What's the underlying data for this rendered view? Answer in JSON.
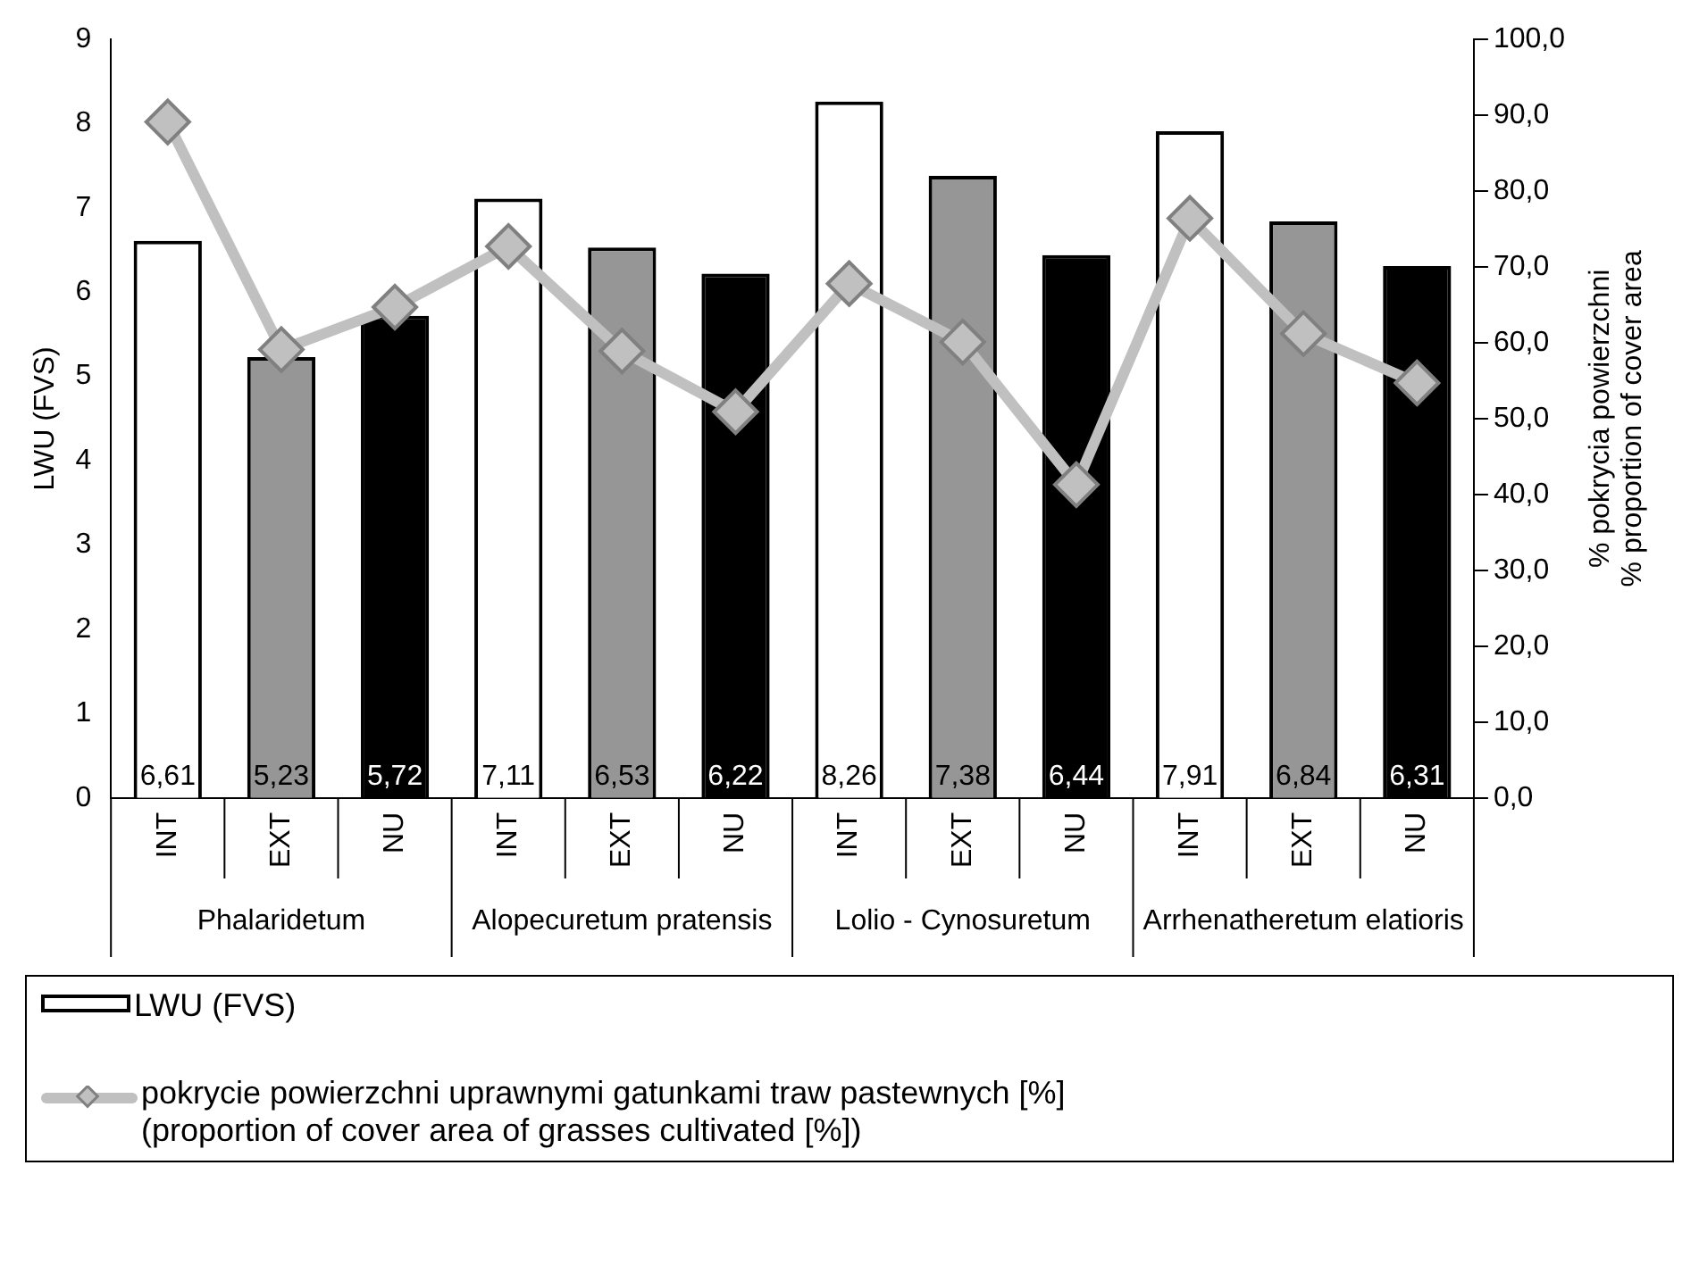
{
  "chart_data": {
    "type": "bar",
    "categories": [
      "INT",
      "EXT",
      "NU",
      "INT",
      "EXT",
      "NU",
      "INT",
      "EXT",
      "NU",
      "INT",
      "EXT",
      "NU"
    ],
    "annotations": [
      "Phalaridetum",
      "Alopecuretum pratensis",
      "Lolio - Cynosuretum",
      "Arrhenatheretum elatioris"
    ],
    "ylabel": "LWU (FVS)",
    "y2label": "% pokrycia powierzchni\n% proportion of cover area",
    "series": [
      {
        "name": "LWU (FVS)",
        "colors": [
          "#ffffff",
          "#969696",
          "#000000",
          "#ffffff",
          "#969696",
          "#000000",
          "#ffffff",
          "#969696",
          "#000000",
          "#ffffff",
          "#969696",
          "#000000"
        ],
        "values": [
          6.61,
          5.23,
          5.72,
          7.11,
          6.53,
          6.22,
          8.26,
          7.38,
          6.44,
          7.91,
          6.84,
          6.31
        ],
        "value_labels": [
          "6,61",
          "5,23",
          "5,72",
          "7,11",
          "6,53",
          "6,22",
          "8,26",
          "7,38",
          "6,44",
          "7,91",
          "6,84",
          "6,31"
        ]
      },
      {
        "name": "pokrycie powierzchni uprawnymi gatunkami traw pastewnych [%]\n(proportion of cover area of grasses cultivated [%])",
        "type": "line",
        "axis": "y2",
        "color": "#c0c0c0",
        "marker": "diamond",
        "values": [
          89.1,
          59.1,
          64.7,
          72.7,
          58.9,
          50.9,
          67.8,
          60.1,
          41.3,
          76.4,
          61.2,
          54.7
        ]
      }
    ],
    "ylim": [
      0,
      9
    ],
    "yticks": [
      0,
      1,
      2,
      3,
      4,
      5,
      6,
      7,
      8,
      9
    ],
    "y2lim": [
      0,
      100
    ],
    "y2ticks": [
      {
        "value": 0,
        "label": "0,0"
      },
      {
        "value": 10,
        "label": "10,0"
      },
      {
        "value": 20,
        "label": "20,0"
      },
      {
        "value": 30,
        "label": "30,0"
      },
      {
        "value": 40,
        "label": "40,0"
      },
      {
        "value": 50,
        "label": "50,0"
      },
      {
        "value": 60,
        "label": "60,0"
      },
      {
        "value": 70,
        "label": "70,0"
      },
      {
        "value": 80,
        "label": "80,0"
      },
      {
        "value": 90,
        "label": "90,0"
      },
      {
        "value": 100,
        "label": "100,0"
      }
    ],
    "grid": false,
    "legend": "bottom"
  }
}
